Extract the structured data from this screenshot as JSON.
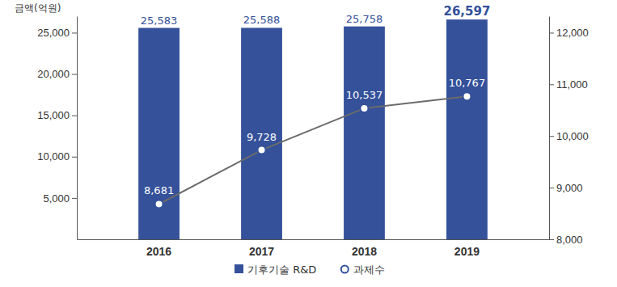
{
  "chart_data": {
    "type": "bar",
    "ylabel": "금액(억원)",
    "categories": [
      "2016",
      "2017",
      "2018",
      "2019"
    ],
    "series": [
      {
        "name": "기후기술 R&D",
        "type": "bar",
        "color": "#34519a",
        "values": [
          25583,
          25588,
          25758,
          26597
        ],
        "value_labels": [
          "25,583",
          "25,588",
          "25,758",
          "26,597"
        ]
      },
      {
        "name": "과제수",
        "type": "line",
        "axis": "y2",
        "color": "#6b6b6b",
        "marker": "circle",
        "values": [
          8681,
          9728,
          10537,
          10767
        ],
        "value_labels": [
          "8,681",
          "9,728",
          "10,537",
          "10,767"
        ]
      }
    ],
    "ylim": [
      0,
      27000
    ],
    "yticks": [
      {
        "value": 5000,
        "label": "5,000"
      },
      {
        "value": 10000,
        "label": "10,000"
      },
      {
        "value": 15000,
        "label": "15,000"
      },
      {
        "value": 20000,
        "label": "20,000"
      },
      {
        "value": 25000,
        "label": "25,000"
      }
    ],
    "y2lim": [
      8000,
      12320
    ],
    "y2ticks": [
      {
        "value": 8000,
        "label": "8,000"
      },
      {
        "value": 9000,
        "label": "9,000"
      },
      {
        "value": 10000,
        "label": "10,000"
      },
      {
        "value": 11000,
        "label": "11,000"
      },
      {
        "value": 12000,
        "label": "12,000"
      }
    ],
    "grid": false,
    "data_labels": true,
    "legend": "bottom"
  }
}
